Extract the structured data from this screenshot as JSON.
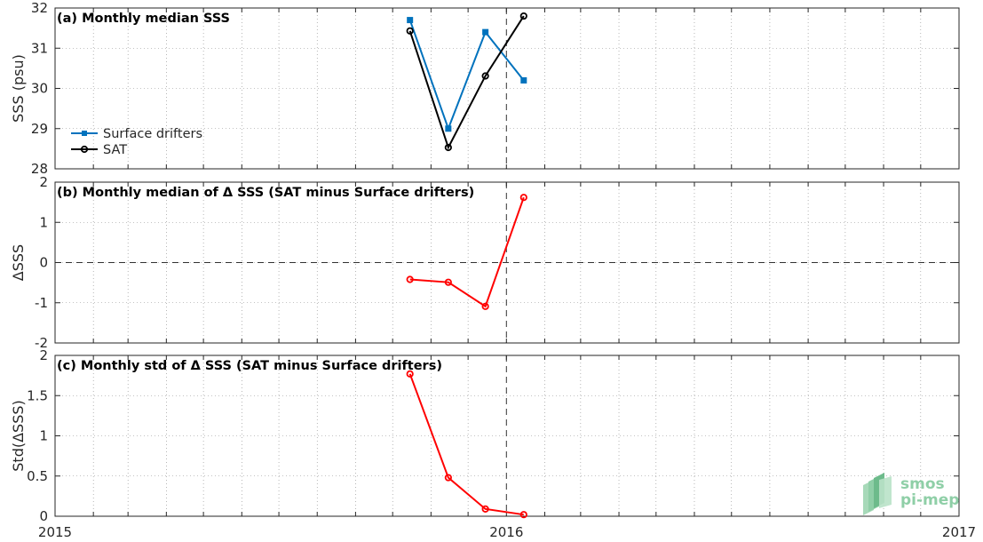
{
  "chart_data": [
    {
      "type": "line",
      "title": "(a) Monthly median SSS",
      "ylabel": "SSS (psu)",
      "xlim": [
        "2015-01-01",
        "2017-01-01"
      ],
      "ylim": [
        28,
        32
      ],
      "yticks": [
        28,
        29,
        30,
        31,
        32
      ],
      "ytick_labels": [
        "28",
        "29",
        "30",
        "31",
        "32"
      ],
      "grid": true,
      "legend_position": "lower-left",
      "reference_vline": "2016-01-01",
      "series": [
        {
          "name": "Surface drifters",
          "color": "#0072bd",
          "marker": "square",
          "x": [
            "2015-10-15",
            "2015-11-15",
            "2015-12-15",
            "2016-01-15"
          ],
          "y": [
            31.7,
            29.0,
            31.4,
            30.2
          ]
        },
        {
          "name": "SAT",
          "color": "#000000",
          "marker": "circle",
          "x": [
            "2015-10-15",
            "2015-11-15",
            "2015-12-15",
            "2016-01-15"
          ],
          "y": [
            31.43,
            28.53,
            30.31,
            31.8
          ]
        }
      ]
    },
    {
      "type": "line",
      "title": "(b) Monthly median of Δ SSS (SAT minus Surface drifters)",
      "ylabel": "ΔSSS",
      "xlim": [
        "2015-01-01",
        "2017-01-01"
      ],
      "ylim": [
        -2,
        2
      ],
      "yticks": [
        -2,
        -1,
        0,
        1,
        2
      ],
      "ytick_labels": [
        "-2",
        "-1",
        "0",
        "1",
        "2"
      ],
      "grid": true,
      "reference_hline": 0,
      "reference_vline": "2016-01-01",
      "series": [
        {
          "color": "#ff0000",
          "marker": "circle",
          "x": [
            "2015-10-15",
            "2015-11-15",
            "2015-12-15",
            "2016-01-15"
          ],
          "y": [
            -0.42,
            -0.49,
            -1.09,
            1.62
          ]
        }
      ]
    },
    {
      "type": "line",
      "title": "(c) Monthly std of Δ SSS (SAT minus Surface drifters)",
      "ylabel": "Std(ΔSSS)",
      "xlim": [
        "2015-01-01",
        "2017-01-01"
      ],
      "ylim": [
        0,
        2
      ],
      "yticks": [
        0,
        0.5,
        1,
        1.5,
        2
      ],
      "ytick_labels": [
        "0",
        "0.5",
        "1",
        "1.5",
        "2"
      ],
      "grid": true,
      "reference_vline": "2016-01-01",
      "series": [
        {
          "color": "#ff0000",
          "marker": "circle",
          "x": [
            "2015-10-15",
            "2015-11-15",
            "2015-12-15",
            "2016-01-15"
          ],
          "y": [
            1.77,
            0.48,
            0.09,
            0.02
          ]
        }
      ]
    }
  ],
  "xaxis": {
    "ticks": [
      "2015-01-01",
      "2016-01-01",
      "2017-01-01"
    ],
    "tick_labels": [
      "2015",
      "2016",
      "2017"
    ]
  },
  "logo": {
    "line1": "smos",
    "line2": "pi-mep",
    "color": "#8fcfa7"
  }
}
